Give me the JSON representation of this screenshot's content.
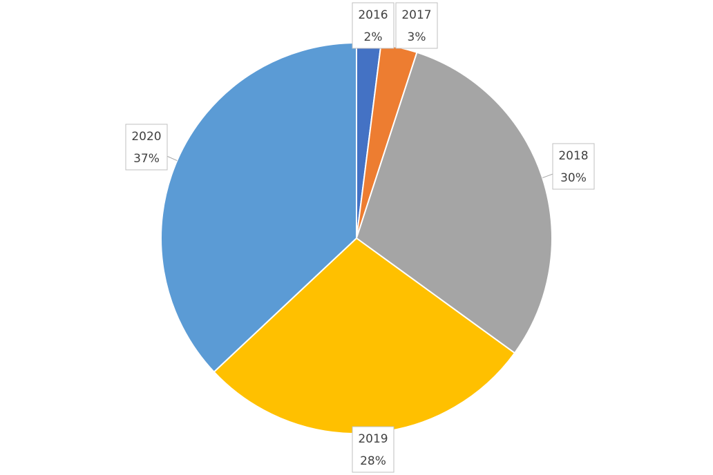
{
  "chart_data": {
    "type": "pie",
    "categories": [
      "2016",
      "2017",
      "2018",
      "2019",
      "2020"
    ],
    "values": [
      2,
      3,
      30,
      28,
      37
    ],
    "value_labels": [
      "2%",
      "3%",
      "30%",
      "28%",
      "37%"
    ],
    "colors": [
      "#4472c4",
      "#ed7d31",
      "#a5a5a5",
      "#ffc000",
      "#5b9bd5"
    ]
  }
}
